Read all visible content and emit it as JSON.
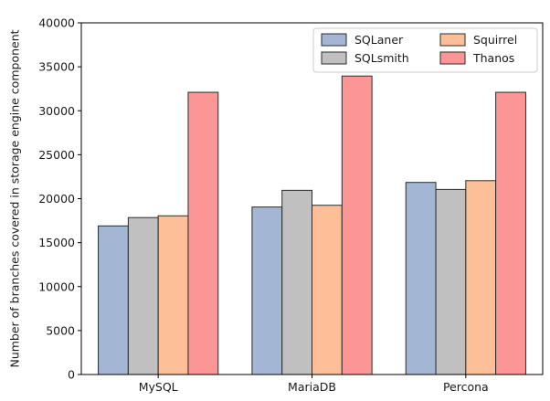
{
  "chart_data": {
    "type": "bar",
    "title": "",
    "xlabel": "",
    "ylabel": "Number of branches covered in storage engine component",
    "categories": [
      "MySQL",
      "MariaDB",
      "Percona"
    ],
    "series": [
      {
        "name": "SQLaner",
        "color": "#a3b6d3",
        "values": [
          16900,
          19050,
          21850
        ]
      },
      {
        "name": "SQLsmith",
        "color": "#c0c0c0",
        "values": [
          17850,
          20950,
          21050
        ]
      },
      {
        "name": "Squirrel",
        "color": "#fcbf98",
        "values": [
          18050,
          19250,
          22050
        ]
      },
      {
        "name": "Thanos",
        "color": "#fc9696",
        "values": [
          32100,
          33950,
          32100
        ]
      }
    ],
    "ylim": [
      0,
      40000
    ],
    "yticks": [
      0,
      5000,
      10000,
      15000,
      20000,
      25000,
      30000,
      35000,
      40000
    ],
    "ytick_labels": [
      "0",
      "5000",
      "10000",
      "15000",
      "20000",
      "25000",
      "30000",
      "35000",
      "40000"
    ],
    "grid": false,
    "legend_position": "top-right",
    "edge_color": "#2b2b2b"
  }
}
